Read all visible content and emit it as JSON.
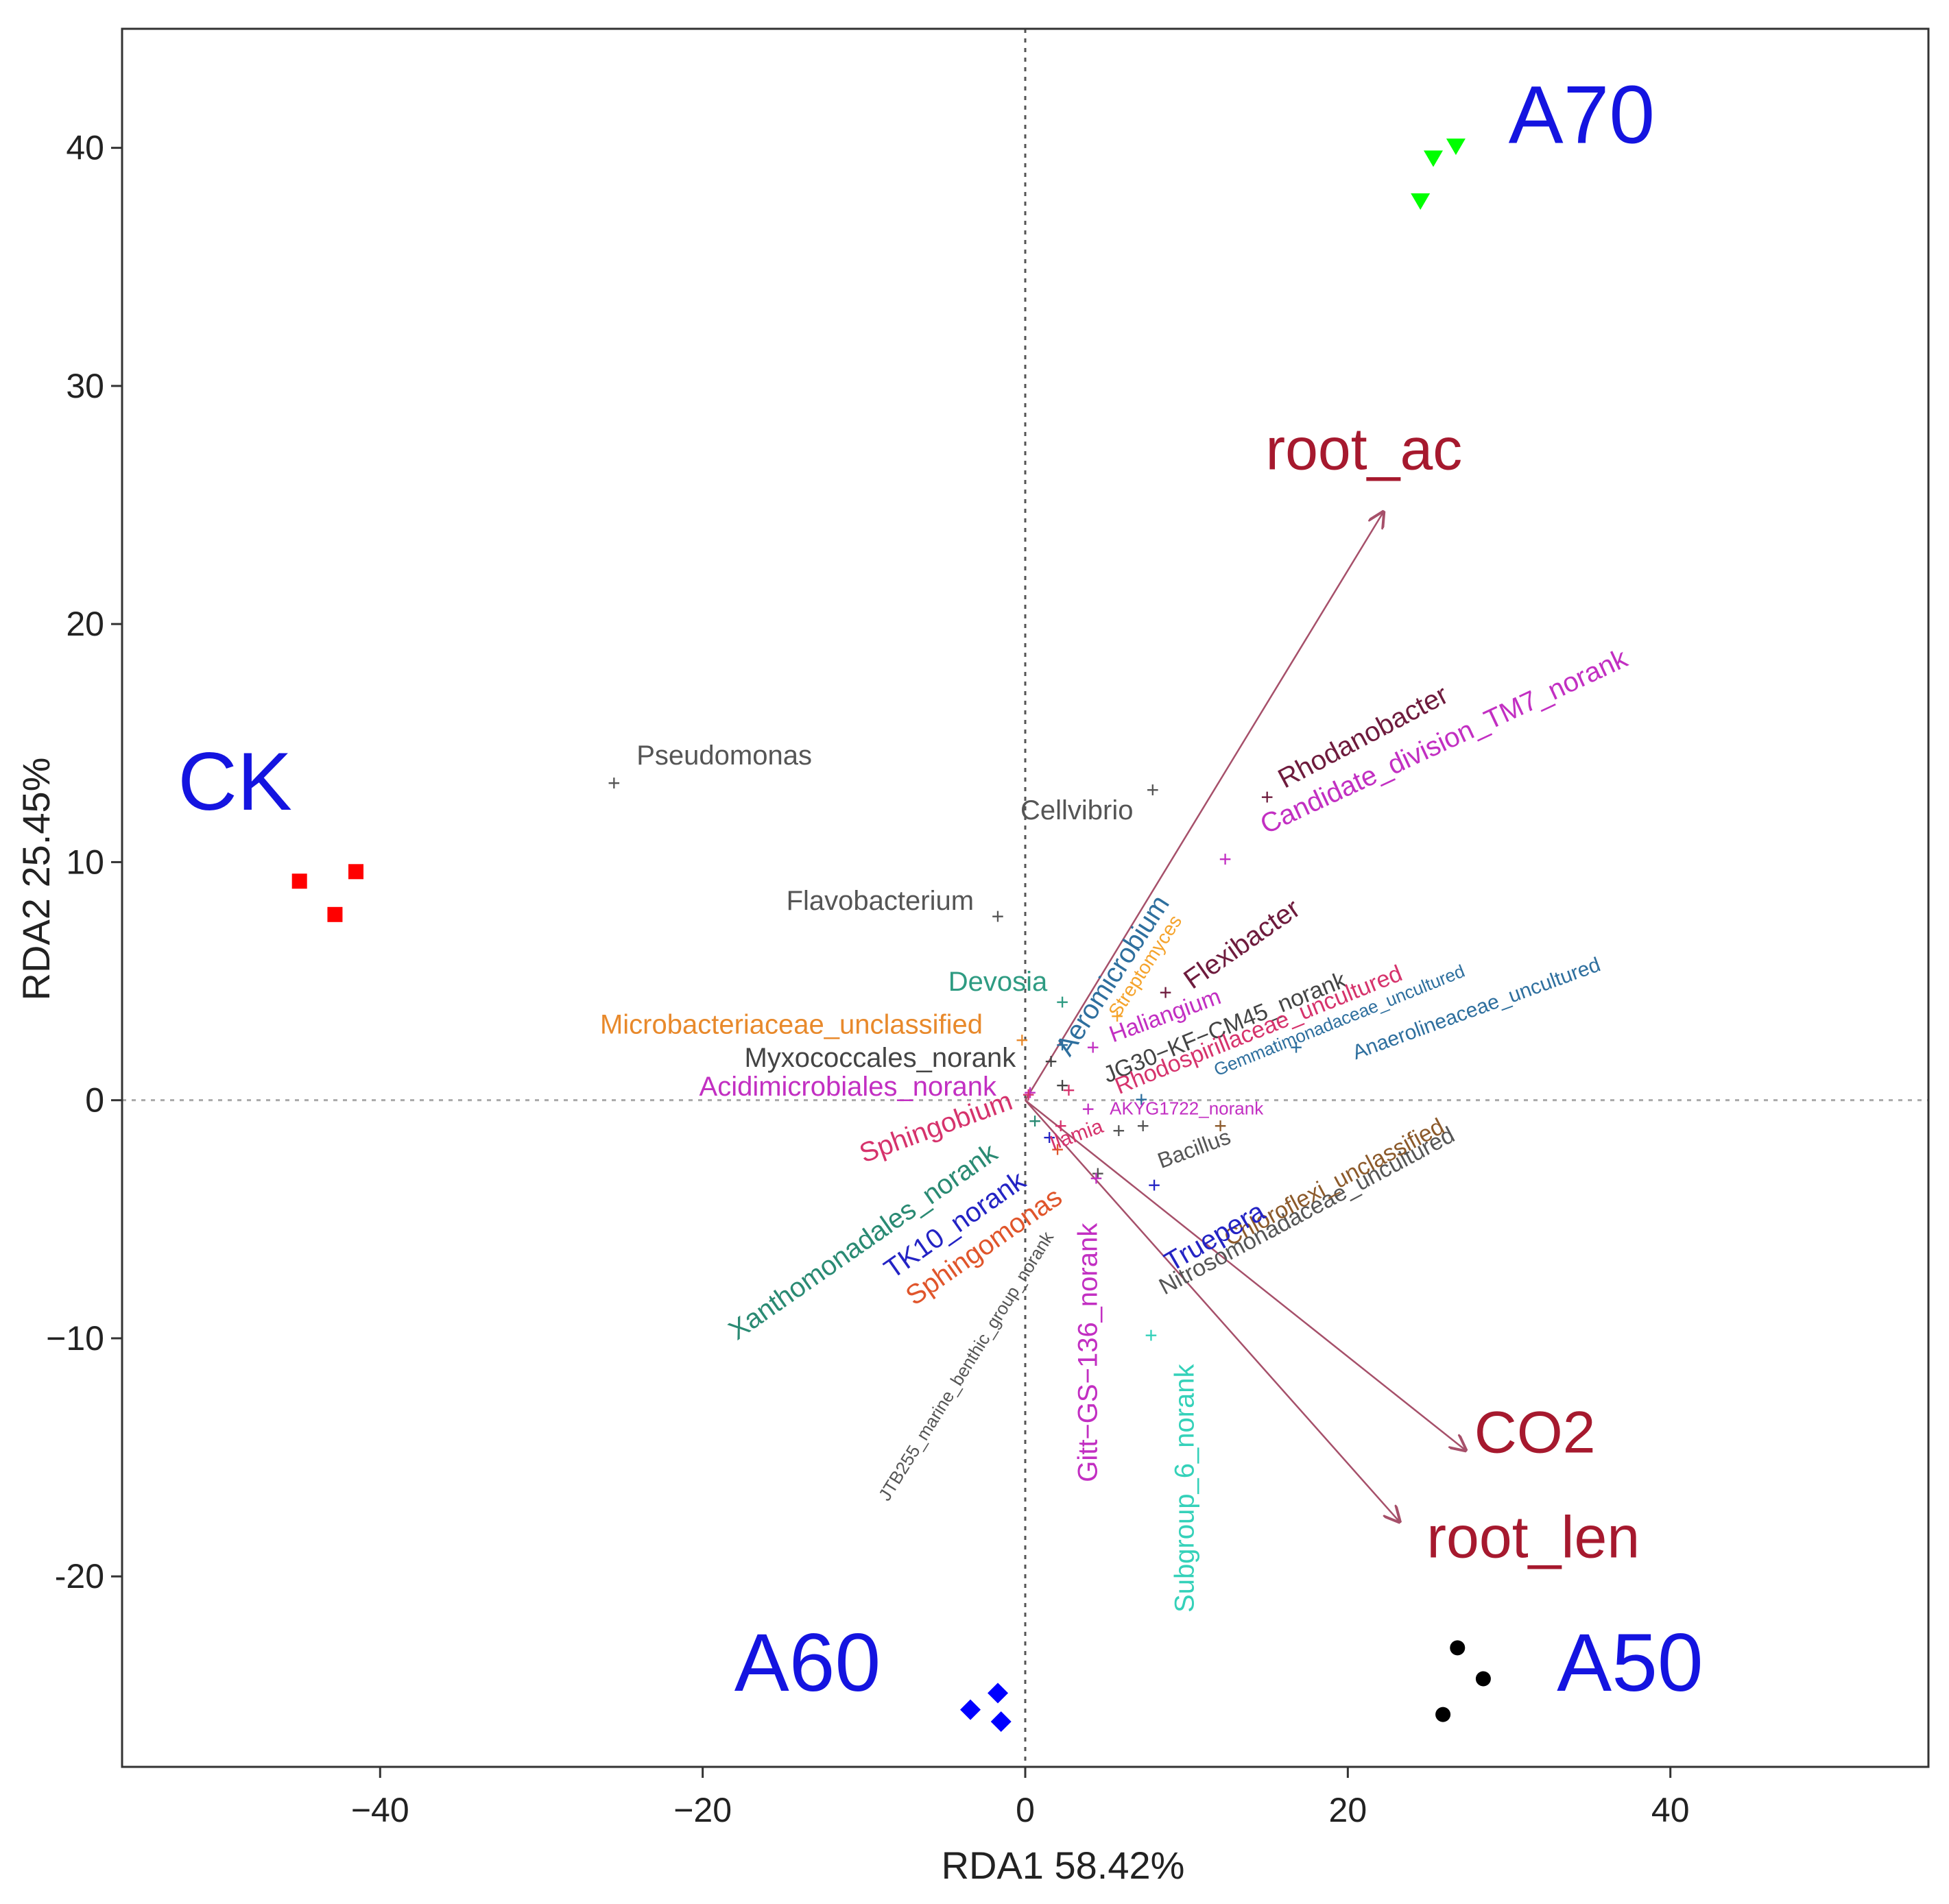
{
  "chart_data": {
    "type": "scatter",
    "xlabel": "RDA1  58.42%",
    "ylabel": "RDA2  25.45%",
    "xlim": [
      -56,
      56
    ],
    "ylim": [
      -28,
      45
    ],
    "x_ticks": [
      -40,
      -20,
      0,
      20,
      40
    ],
    "y_ticks": [
      -20,
      -10,
      0,
      10,
      20,
      30,
      40
    ],
    "x_tick_labels": [
      "−40",
      "−20",
      "0",
      "20",
      "40"
    ],
    "y_tick_labels": [
      "-20",
      "−10",
      "0",
      "10",
      "20",
      "30",
      "40"
    ],
    "grid": false,
    "reference_lines": {
      "x": 0,
      "y": 0,
      "style": "dotted"
    },
    "legend": "none",
    "sample_groups": [
      {
        "name": "CK",
        "marker": "square",
        "color": "#ff0000",
        "label_pos": [
          -49,
          12.2
        ],
        "points": [
          [
            -45,
            9.2
          ],
          [
            -42.8,
            7.8
          ],
          [
            -41.5,
            9.6
          ]
        ]
      },
      {
        "name": "A70",
        "marker": "triangle-down",
        "color": "#00ff00",
        "label_pos": [
          34.5,
          40.2
        ],
        "points": [
          [
            24.5,
            37.8
          ],
          [
            25.3,
            39.6
          ],
          [
            26.7,
            40.1
          ]
        ]
      },
      {
        "name": "A60",
        "marker": "diamond",
        "color": "#0000ff",
        "label_pos": [
          -13.5,
          -24.8
        ],
        "points": [
          [
            -3.4,
            -25.6
          ],
          [
            -1.7,
            -24.9
          ],
          [
            -1.5,
            -26.1
          ]
        ]
      },
      {
        "name": "A50",
        "marker": "circle",
        "color": "#000000",
        "label_pos": [
          37.5,
          -24.8
        ],
        "points": [
          [
            25.9,
            -25.8
          ],
          [
            26.8,
            -23
          ],
          [
            28.4,
            -24.3
          ]
        ]
      }
    ],
    "env_vectors": [
      {
        "name": "root_ac",
        "x": 22.2,
        "y": 24.7,
        "label_pos": [
          21,
          26.5
        ],
        "color": "#a6192e"
      },
      {
        "name": "CO2",
        "x": 27.3,
        "y": -14.7,
        "label_pos": [
          31.6,
          -14.8
        ],
        "color": "#a6192e"
      },
      {
        "name": "root_len",
        "x": 23.2,
        "y": -17.7,
        "label_pos": [
          31.5,
          -19.2
        ],
        "color": "#a6192e"
      }
    ],
    "species": [
      {
        "name": "Pseudomonas",
        "x": -25.5,
        "y": 13.3,
        "color": "#555555",
        "label_pos": [
          -24.1,
          14.4
        ],
        "rotation": 0,
        "anchor": "start",
        "size": 40
      },
      {
        "name": "Cellvibrio",
        "x": 7.9,
        "y": 13,
        "color": "#555555",
        "label_pos": [
          3.2,
          12.1
        ],
        "rotation": 0,
        "anchor": "middle",
        "size": 40
      },
      {
        "name": "Flavobacterium",
        "x": -1.7,
        "y": 7.7,
        "color": "#555555",
        "label_pos": [
          -9,
          8.3
        ],
        "rotation": 0,
        "anchor": "middle",
        "size": 40
      },
      {
        "name": "Devosia",
        "x": 2.3,
        "y": 4.1,
        "color": "#2e9b82",
        "label_pos": [
          -1.7,
          4.9
        ],
        "rotation": 0,
        "anchor": "middle",
        "size": 40
      },
      {
        "name": "Microbacteriaceae_unclassified",
        "x": -0.2,
        "y": 2.5,
        "color": "#e8892b",
        "label_pos": [
          -14.5,
          3.1
        ],
        "rotation": 0,
        "anchor": "middle",
        "size": 40
      },
      {
        "name": "Myxococcales_norank",
        "x": 1.6,
        "y": 1.6,
        "color": "#444444",
        "label_pos": [
          -9,
          1.7
        ],
        "rotation": 0,
        "anchor": "middle",
        "size": 40
      },
      {
        "name": "Acidimicrobiales_norank",
        "x": 0.3,
        "y": 0.3,
        "color": "#c22fc2",
        "label_pos": [
          -11,
          0.5
        ],
        "rotation": 0,
        "anchor": "middle",
        "size": 40
      },
      {
        "name": "Sphingobium",
        "x": 0.2,
        "y": 0.2,
        "color": "#d6336c",
        "label_pos": [
          -5.5,
          -1.2
        ],
        "rotation": -20,
        "anchor": "middle",
        "size": 40
      },
      {
        "name": "Xanthomonadales_norank",
        "x": 0.6,
        "y": -0.9,
        "color": "#2a8a73",
        "label_pos": [
          -10,
          -6
        ],
        "rotation": -35,
        "anchor": "middle",
        "size": 40
      },
      {
        "name": "TK10_norank",
        "x": 1.5,
        "y": -1.6,
        "color": "#2323c4",
        "label_pos": [
          -4.3,
          -5.3
        ],
        "rotation": -35,
        "anchor": "middle",
        "size": 40
      },
      {
        "name": "Sphingomonas",
        "x": 2,
        "y": -2.1,
        "color": "#e0552b",
        "label_pos": [
          -2.5,
          -6.2
        ],
        "rotation": -35,
        "anchor": "middle",
        "size": 40
      },
      {
        "name": "JTB255_marine_benthic_group_norank",
        "x": 4.5,
        "y": -3.1,
        "color": "#555555",
        "label_pos": [
          -3.6,
          -11.2
        ],
        "rotation": -58,
        "anchor": "middle",
        "size": 26
      },
      {
        "name": "Gitt−GS−136_norank",
        "x": 4.4,
        "y": -3.3,
        "color": "#c22fc2",
        "label_pos": [
          4,
          -10.6
        ],
        "rotation": -90,
        "anchor": "middle",
        "size": 40
      },
      {
        "name": "Subgroup_6_norank",
        "x": 7.8,
        "y": -9.9,
        "color": "#34d1b9",
        "label_pos": [
          10,
          -16.3
        ],
        "rotation": -90,
        "anchor": "middle",
        "size": 40
      },
      {
        "name": "Aeromicrobium",
        "x": 2.3,
        "y": 2.3,
        "color": "#2e6f9e",
        "label_pos": [
          5.5,
          5.2
        ],
        "rotation": -57,
        "anchor": "middle",
        "size": 40
      },
      {
        "name": "Streptomyces",
        "x": 5.7,
        "y": 3.5,
        "color": "#f5a32b",
        "label_pos": [
          7.5,
          5.6
        ],
        "rotation": -57,
        "anchor": "middle",
        "size": 28
      },
      {
        "name": "Flexibacter",
        "x": 8.7,
        "y": 4.5,
        "color": "#6e1b3d",
        "label_pos": [
          13.5,
          6.5
        ],
        "rotation": -35,
        "anchor": "middle",
        "size": 40
      },
      {
        "name": "Rhodanobacter",
        "x": 15,
        "y": 12.7,
        "color": "#6e1b3d",
        "label_pos": [
          21,
          15.2
        ],
        "rotation": -28,
        "anchor": "middle",
        "size": 40
      },
      {
        "name": "Candidate_division_TM7_norank",
        "x": 12.4,
        "y": 10.1,
        "color": "#c22fc2",
        "label_pos": [
          26,
          15
        ],
        "rotation": -25,
        "anchor": "middle",
        "size": 40
      },
      {
        "name": "Haliangium",
        "x": 4.2,
        "y": 2.2,
        "color": "#c22fc2",
        "label_pos": [
          8.7,
          3.5
        ],
        "rotation": -20,
        "anchor": "middle",
        "size": 34
      },
      {
        "name": "JG30−KF−CM45_norank",
        "x": 2.3,
        "y": 0.6,
        "color": "#444444",
        "label_pos": [
          12.4,
          3
        ],
        "rotation": -22,
        "anchor": "middle",
        "size": 34
      },
      {
        "name": "Rhodospirillaceae_uncultured",
        "x": 2.7,
        "y": 0.4,
        "color": "#d6336c",
        "label_pos": [
          14.5,
          2.9
        ],
        "rotation": -22,
        "anchor": "middle",
        "size": 34
      },
      {
        "name": "Gemmatimonadaceae_uncultured",
        "x": 7.2,
        "y": 0,
        "color": "#2e6f9e",
        "label_pos": [
          19.5,
          3.3
        ],
        "rotation": -22,
        "anchor": "middle",
        "size": 26
      },
      {
        "name": "Anaerolineaceae_uncultured",
        "x": 16.8,
        "y": 2.2,
        "color": "#2e6f9e",
        "label_pos": [
          28,
          3.8
        ],
        "rotation": -20,
        "anchor": "middle",
        "size": 30
      },
      {
        "name": "AKYG1722_norank",
        "x": 3.9,
        "y": -0.4,
        "color": "#c22fc2",
        "label_pos": [
          10,
          -0.4
        ],
        "rotation": 0,
        "anchor": "middle",
        "size": 26
      },
      {
        "name": "Ilamia",
        "x": 2.2,
        "y": -1.1,
        "color": "#d6336c",
        "label_pos": [
          3.2,
          -1.5
        ],
        "rotation": -20,
        "anchor": "middle",
        "size": 30
      },
      {
        "name": "Bacillus",
        "x": 5.8,
        "y": -1.3,
        "color": "#555555",
        "label_pos": [
          10.5,
          -2.1
        ],
        "rotation": -20,
        "anchor": "middle",
        "size": 32
      },
      {
        "name": "Nitrosomonadaceae_uncultured",
        "x": 7.3,
        "y": -1.1,
        "color": "#555555",
        "label_pos": [
          17.5,
          -4.7
        ],
        "rotation": -28,
        "anchor": "middle",
        "size": 34
      },
      {
        "name": "Chloroflexi_unclassified",
        "x": 12.1,
        "y": -1.1,
        "color": "#8c5a2b",
        "label_pos": [
          19.2,
          -3.5
        ],
        "rotation": -28,
        "anchor": "middle",
        "size": 34
      },
      {
        "name": "Truepera",
        "x": 8,
        "y": -3.6,
        "color": "#2323c4",
        "label_pos": [
          11.8,
          -5.8
        ],
        "rotation": -30,
        "anchor": "middle",
        "size": 40
      }
    ]
  }
}
